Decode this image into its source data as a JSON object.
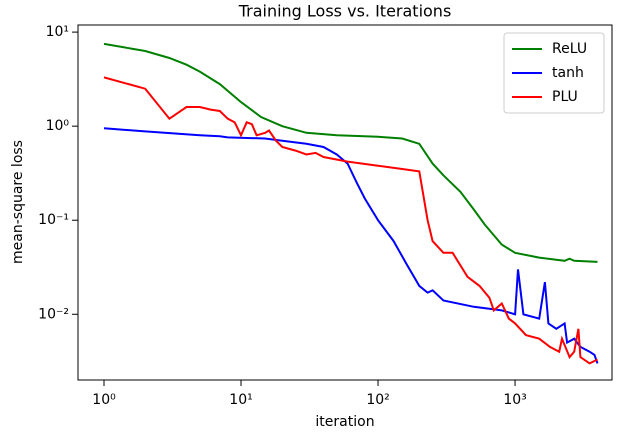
{
  "chart_data": {
    "type": "line",
    "title": "Training Loss vs. Iterations",
    "x_label": "iteration",
    "y_label": "mean-square loss",
    "xscale": "log",
    "yscale": "log",
    "xlim": [
      0.646,
      5100
    ],
    "ylim": [
      0.002,
      11.9
    ],
    "xticks": [
      {
        "value": 1,
        "label": "10⁰"
      },
      {
        "value": 10,
        "label": "10¹"
      },
      {
        "value": 100,
        "label": "10²"
      },
      {
        "value": 1000,
        "label": "10³"
      }
    ],
    "yticks": [
      {
        "value": 0.01,
        "label": "10⁻²"
      },
      {
        "value": 0.1,
        "label": "10⁻¹"
      },
      {
        "value": 1,
        "label": "10⁰"
      },
      {
        "value": 10,
        "label": "10¹"
      }
    ],
    "legend": "upper right",
    "series": [
      {
        "name": "ReLU",
        "color": "#008000",
        "x": [
          1,
          2,
          3,
          4,
          5,
          7,
          10,
          14,
          20,
          30,
          50,
          100,
          150,
          200,
          250,
          300,
          400,
          500,
          600,
          800,
          1000,
          1500,
          2000,
          2300,
          2500,
          2700,
          4000
        ],
        "values": [
          7.5,
          6.3,
          5.3,
          4.5,
          3.8,
          2.8,
          1.8,
          1.25,
          1.0,
          0.85,
          0.8,
          0.77,
          0.74,
          0.65,
          0.4,
          0.3,
          0.2,
          0.13,
          0.09,
          0.055,
          0.045,
          0.04,
          0.038,
          0.037,
          0.039,
          0.037,
          0.036
        ]
      },
      {
        "name": "tanh",
        "color": "#0000ff",
        "x": [
          1,
          2,
          5,
          7,
          8,
          15,
          20,
          30,
          40,
          50,
          60,
          70,
          80,
          100,
          130,
          160,
          200,
          230,
          250,
          300,
          500,
          800,
          1000,
          1050,
          1150,
          1500,
          1650,
          1750,
          2000,
          2300,
          2400,
          2700,
          3000,
          3500,
          3800,
          4000
        ],
        "values": [
          0.95,
          0.88,
          0.8,
          0.78,
          0.76,
          0.74,
          0.7,
          0.65,
          0.6,
          0.5,
          0.4,
          0.25,
          0.17,
          0.1,
          0.06,
          0.035,
          0.02,
          0.017,
          0.018,
          0.014,
          0.012,
          0.011,
          0.01,
          0.03,
          0.01,
          0.009,
          0.022,
          0.008,
          0.007,
          0.008,
          0.005,
          0.0055,
          0.0045,
          0.004,
          0.0037,
          0.003
        ]
      },
      {
        "name": "PLU",
        "color": "#ff0000",
        "x": [
          1,
          2,
          3,
          4,
          5,
          6,
          7,
          8,
          9,
          10,
          11,
          12,
          13,
          15,
          16,
          18,
          20,
          25,
          30,
          35,
          40,
          60,
          100,
          150,
          200,
          230,
          250,
          300,
          350,
          450,
          550,
          650,
          700,
          800,
          900,
          1000,
          1200,
          1500,
          1800,
          2100,
          2200,
          2500,
          2700,
          2900,
          3000,
          3500,
          4000
        ],
        "values": [
          3.3,
          2.5,
          1.2,
          1.6,
          1.6,
          1.5,
          1.45,
          1.2,
          1.1,
          0.8,
          1.1,
          1.05,
          0.8,
          0.85,
          0.9,
          0.7,
          0.6,
          0.55,
          0.5,
          0.52,
          0.47,
          0.42,
          0.38,
          0.35,
          0.33,
          0.1,
          0.06,
          0.045,
          0.045,
          0.025,
          0.02,
          0.015,
          0.011,
          0.013,
          0.009,
          0.008,
          0.006,
          0.0055,
          0.0045,
          0.004,
          0.0055,
          0.0035,
          0.004,
          0.007,
          0.0035,
          0.003,
          0.0033
        ]
      }
    ]
  }
}
